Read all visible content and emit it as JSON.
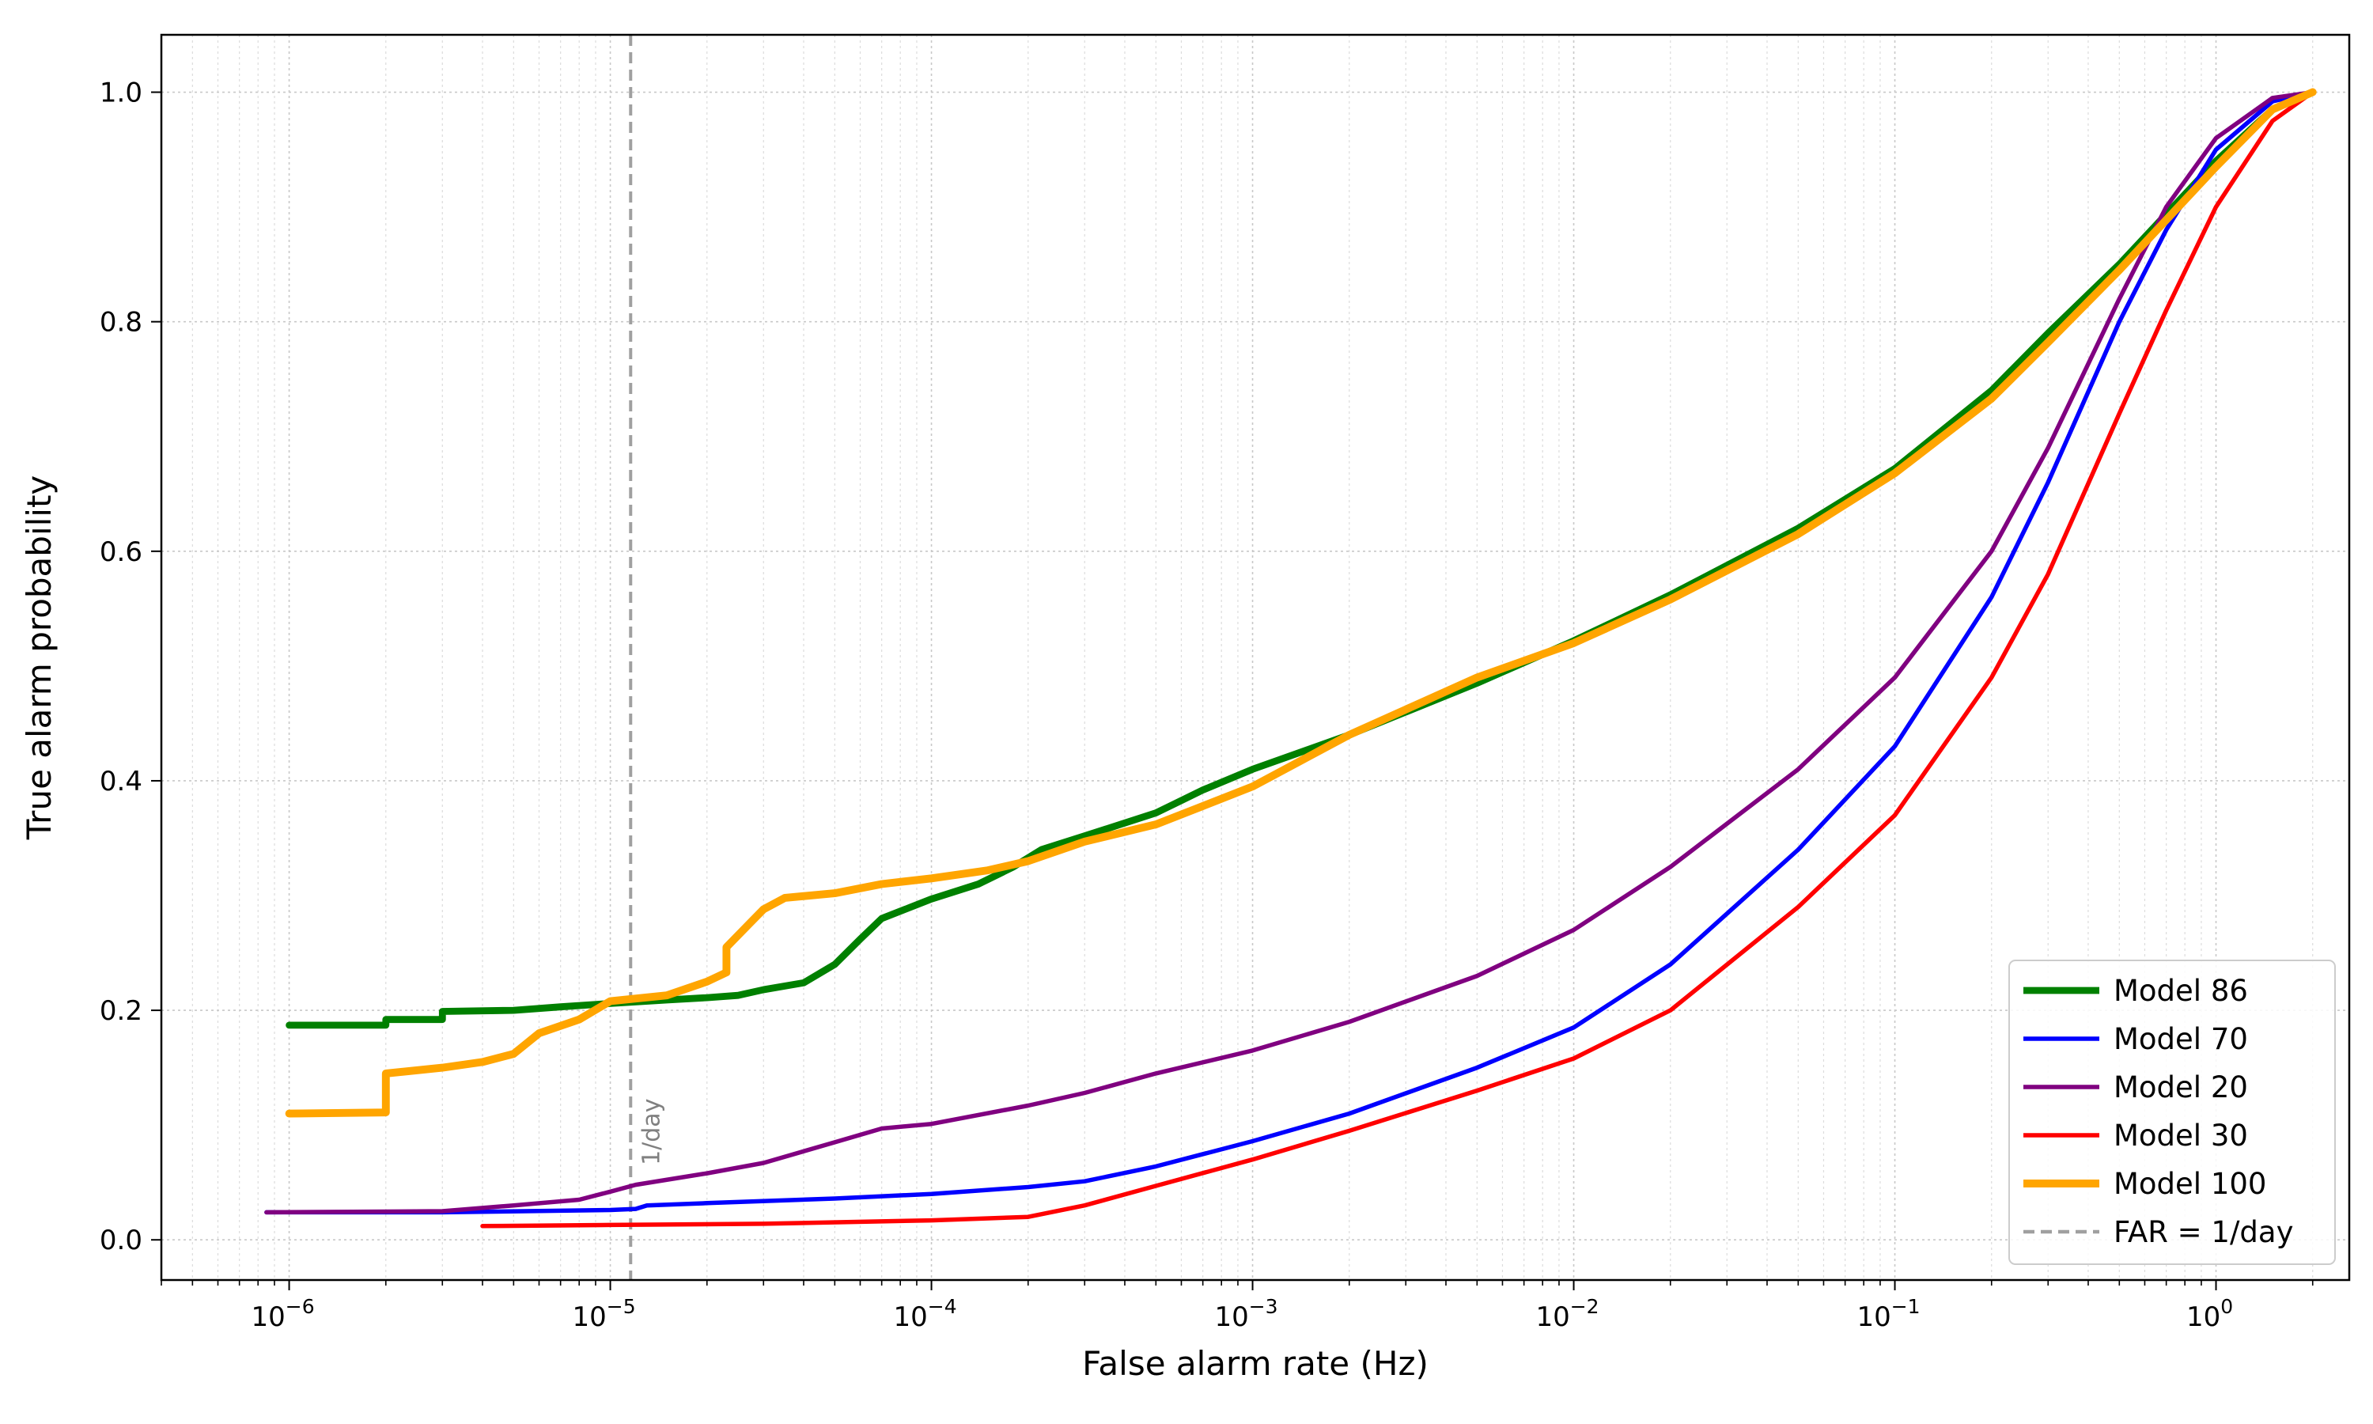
{
  "chart_data": {
    "type": "line",
    "title": "",
    "xlabel": "False alarm rate (Hz)",
    "ylabel": "True alarm probability",
    "xscale": "log",
    "xlim": [
      4e-07,
      2.6
    ],
    "ylim": [
      -0.035,
      1.05
    ],
    "x_ticks": [
      {
        "value": 1e-06,
        "base": "10",
        "exp": "−6"
      },
      {
        "value": 1e-05,
        "base": "10",
        "exp": "−5"
      },
      {
        "value": 0.0001,
        "base": "10",
        "exp": "−4"
      },
      {
        "value": 0.001,
        "base": "10",
        "exp": "−3"
      },
      {
        "value": 0.01,
        "base": "10",
        "exp": "−2"
      },
      {
        "value": 0.1,
        "base": "10",
        "exp": "−1"
      },
      {
        "value": 1,
        "base": "10",
        "exp": "0"
      }
    ],
    "y_ticks": [
      {
        "value": 0.0,
        "label": "0.0"
      },
      {
        "value": 0.2,
        "label": "0.2"
      },
      {
        "value": 0.4,
        "label": "0.4"
      },
      {
        "value": 0.6,
        "label": "0.6"
      },
      {
        "value": 0.8,
        "label": "0.8"
      },
      {
        "value": 1.0,
        "label": "1.0"
      }
    ],
    "grid": true,
    "legend_position": "lower-right",
    "series": [
      {
        "name": "Model 86",
        "color": "#008000",
        "width": 4,
        "points": [
          [
            1e-06,
            0.187
          ],
          [
            2e-06,
            0.187
          ],
          [
            2e-06,
            0.192
          ],
          [
            3e-06,
            0.192
          ],
          [
            3e-06,
            0.199
          ],
          [
            5e-06,
            0.2
          ],
          [
            7e-06,
            0.203
          ],
          [
            1e-05,
            0.206
          ],
          [
            1.5e-05,
            0.209
          ],
          [
            2e-05,
            0.211
          ],
          [
            2.5e-05,
            0.213
          ],
          [
            3e-05,
            0.218
          ],
          [
            4e-05,
            0.224
          ],
          [
            5e-05,
            0.24
          ],
          [
            6e-05,
            0.262
          ],
          [
            7e-05,
            0.28
          ],
          [
            0.0001,
            0.297
          ],
          [
            0.00014,
            0.31
          ],
          [
            0.00018,
            0.325
          ],
          [
            0.00022,
            0.34
          ],
          [
            0.0003,
            0.352
          ],
          [
            0.0005,
            0.372
          ],
          [
            0.0007,
            0.392
          ],
          [
            0.001,
            0.41
          ],
          [
            0.002,
            0.44
          ],
          [
            0.005,
            0.485
          ],
          [
            0.01,
            0.522
          ],
          [
            0.02,
            0.562
          ],
          [
            0.05,
            0.62
          ],
          [
            0.1,
            0.672
          ],
          [
            0.2,
            0.74
          ],
          [
            0.3,
            0.79
          ],
          [
            0.5,
            0.85
          ],
          [
            1.0,
            0.94
          ],
          [
            1.5,
            0.985
          ],
          [
            2.0,
            1.0
          ]
        ]
      },
      {
        "name": "Model 70",
        "color": "#0000ff",
        "width": 2.5,
        "points": [
          [
            8.5e-07,
            0.024
          ],
          [
            3e-06,
            0.024
          ],
          [
            1e-05,
            0.026
          ],
          [
            1.2e-05,
            0.027
          ],
          [
            1.3e-05,
            0.03
          ],
          [
            2e-05,
            0.032
          ],
          [
            5e-05,
            0.036
          ],
          [
            0.0001,
            0.04
          ],
          [
            0.0002,
            0.046
          ],
          [
            0.0003,
            0.051
          ],
          [
            0.0005,
            0.064
          ],
          [
            0.001,
            0.086
          ],
          [
            0.002,
            0.11
          ],
          [
            0.005,
            0.15
          ],
          [
            0.01,
            0.185
          ],
          [
            0.02,
            0.24
          ],
          [
            0.05,
            0.34
          ],
          [
            0.1,
            0.43
          ],
          [
            0.2,
            0.56
          ],
          [
            0.3,
            0.66
          ],
          [
            0.5,
            0.8
          ],
          [
            0.7,
            0.88
          ],
          [
            1.0,
            0.95
          ],
          [
            1.5,
            0.992
          ],
          [
            2.0,
            1.0
          ]
        ]
      },
      {
        "name": "Model 20",
        "color": "#800080",
        "width": 2.5,
        "points": [
          [
            8.5e-07,
            0.024
          ],
          [
            3e-06,
            0.025
          ],
          [
            5e-06,
            0.03
          ],
          [
            8e-06,
            0.035
          ],
          [
            1e-05,
            0.042
          ],
          [
            1.2e-05,
            0.048
          ],
          [
            2e-05,
            0.058
          ],
          [
            3e-05,
            0.067
          ],
          [
            5e-05,
            0.085
          ],
          [
            7e-05,
            0.097
          ],
          [
            0.0001,
            0.101
          ],
          [
            0.0002,
            0.117
          ],
          [
            0.0003,
            0.128
          ],
          [
            0.0005,
            0.145
          ],
          [
            0.001,
            0.165
          ],
          [
            0.002,
            0.19
          ],
          [
            0.005,
            0.23
          ],
          [
            0.01,
            0.27
          ],
          [
            0.02,
            0.325
          ],
          [
            0.05,
            0.41
          ],
          [
            0.1,
            0.49
          ],
          [
            0.2,
            0.6
          ],
          [
            0.3,
            0.69
          ],
          [
            0.5,
            0.82
          ],
          [
            0.7,
            0.9
          ],
          [
            1.0,
            0.96
          ],
          [
            1.5,
            0.995
          ],
          [
            2.0,
            1.0
          ]
        ]
      },
      {
        "name": "Model 30",
        "color": "#ff0000",
        "width": 2.5,
        "points": [
          [
            4e-06,
            0.012
          ],
          [
            1e-05,
            0.013
          ],
          [
            3e-05,
            0.014
          ],
          [
            0.0001,
            0.017
          ],
          [
            0.0002,
            0.02
          ],
          [
            0.0003,
            0.03
          ],
          [
            0.0005,
            0.047
          ],
          [
            0.001,
            0.07
          ],
          [
            0.002,
            0.095
          ],
          [
            0.005,
            0.13
          ],
          [
            0.01,
            0.158
          ],
          [
            0.02,
            0.2
          ],
          [
            0.05,
            0.29
          ],
          [
            0.1,
            0.37
          ],
          [
            0.2,
            0.49
          ],
          [
            0.3,
            0.58
          ],
          [
            0.5,
            0.72
          ],
          [
            0.7,
            0.81
          ],
          [
            1.0,
            0.9
          ],
          [
            1.5,
            0.975
          ],
          [
            2.0,
            1.0
          ]
        ]
      },
      {
        "name": "Model 100",
        "color": "#ffa500",
        "width": 4.5,
        "points": [
          [
            1e-06,
            0.11
          ],
          [
            2e-06,
            0.111
          ],
          [
            2e-06,
            0.145
          ],
          [
            3e-06,
            0.15
          ],
          [
            4e-06,
            0.155
          ],
          [
            5e-06,
            0.162
          ],
          [
            6e-06,
            0.18
          ],
          [
            8e-06,
            0.192
          ],
          [
            1e-05,
            0.208
          ],
          [
            1.5e-05,
            0.213
          ],
          [
            2e-05,
            0.225
          ],
          [
            2.3e-05,
            0.233
          ],
          [
            2.3e-05,
            0.255
          ],
          [
            2.7e-05,
            0.275
          ],
          [
            3e-05,
            0.288
          ],
          [
            3.5e-05,
            0.298
          ],
          [
            5e-05,
            0.302
          ],
          [
            7e-05,
            0.31
          ],
          [
            0.0001,
            0.315
          ],
          [
            0.00015,
            0.322
          ],
          [
            0.0002,
            0.33
          ],
          [
            0.0003,
            0.347
          ],
          [
            0.0005,
            0.362
          ],
          [
            0.0007,
            0.378
          ],
          [
            0.001,
            0.395
          ],
          [
            0.002,
            0.44
          ],
          [
            0.005,
            0.49
          ],
          [
            0.01,
            0.52
          ],
          [
            0.02,
            0.558
          ],
          [
            0.05,
            0.615
          ],
          [
            0.1,
            0.668
          ],
          [
            0.2,
            0.733
          ],
          [
            0.3,
            0.782
          ],
          [
            0.5,
            0.845
          ],
          [
            1.0,
            0.935
          ],
          [
            1.5,
            0.985
          ],
          [
            2.0,
            1.0
          ]
        ]
      }
    ],
    "reference_line": {
      "name": "FAR = 1/day",
      "x": 1.157e-05,
      "color": "#a0a0a0",
      "label": "1/day"
    }
  }
}
